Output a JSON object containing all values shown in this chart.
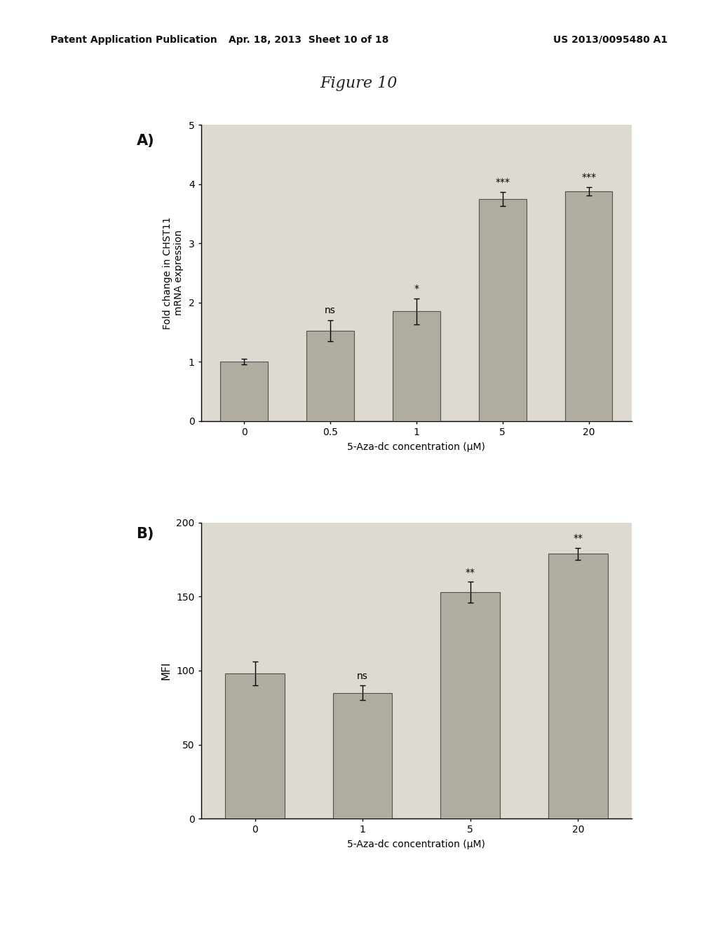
{
  "figure_title": "Figure 10",
  "page_background": "#ffffff",
  "content_box_color": "#e8e5de",
  "plot_bg_color": "#dedad2",
  "header_left": "Patent Application Publication",
  "header_center": "Apr. 18, 2013  Sheet 10 of 18",
  "header_right": "US 2013/0095480 A1",
  "panel_A": {
    "label": "A)",
    "categories": [
      "0",
      "0.5",
      "1",
      "5",
      "20"
    ],
    "values": [
      1.0,
      1.52,
      1.85,
      3.75,
      3.88
    ],
    "errors": [
      0.05,
      0.18,
      0.22,
      0.12,
      0.07
    ],
    "significance": [
      "",
      "ns",
      "*",
      "***",
      "***"
    ],
    "ylabel": "Fold change in CHST11\nmRNA expression",
    "xlabel": "5-Aza-dc concentration (μM)",
    "ylim": [
      0,
      5
    ],
    "yticks": [
      0,
      1,
      2,
      3,
      4,
      5
    ],
    "bar_color": "#b0aca0",
    "bar_edgecolor": "#555050"
  },
  "panel_B": {
    "label": "B)",
    "categories": [
      "0",
      "1",
      "5",
      "20"
    ],
    "values": [
      98,
      85,
      153,
      179
    ],
    "errors": [
      8,
      5,
      7,
      4
    ],
    "significance": [
      "",
      "ns",
      "**",
      "**"
    ],
    "ylabel": "MFI",
    "xlabel": "5-Aza-dc concentration (μM)",
    "ylim": [
      0,
      200
    ],
    "yticks": [
      0,
      50,
      100,
      150,
      200
    ],
    "bar_color": "#b0aca0",
    "bar_edgecolor": "#555050"
  }
}
